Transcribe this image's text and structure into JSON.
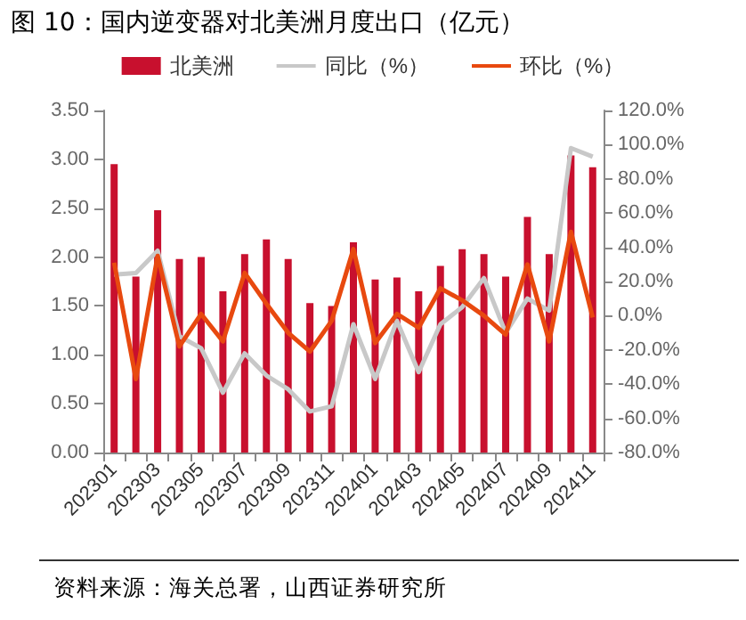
{
  "chart_data": {
    "type": "bar",
    "title": "图 10：国内逆变器对北美洲月度出口（亿元）",
    "annotations": [
      "资料来源：海关总署，山西证券研究所"
    ],
    "categories": [
      "202301",
      null,
      "202303",
      null,
      "202305",
      null,
      "202307",
      null,
      "202309",
      null,
      "202311",
      null,
      "202401",
      null,
      "202403",
      null,
      "202405",
      null,
      "202407",
      null,
      "202409",
      null,
      "202411"
    ],
    "series": [
      {
        "name": "北美洲",
        "color": "#c8102e",
        "values": [
          2.95,
          1.8,
          2.48,
          1.98,
          2.0,
          1.65,
          2.03,
          2.18,
          1.98,
          1.53,
          1.5,
          2.15,
          1.77,
          1.79,
          1.65,
          1.91,
          2.08,
          2.03,
          1.8,
          2.41,
          2.03,
          3.04,
          2.92
        ]
      },
      {
        "name": "同比（%）",
        "type": "line",
        "axis": "y2",
        "color": "#c8c8c8",
        "values": [
          24,
          25,
          38,
          -12,
          -19,
          -45,
          -22,
          -35,
          -43,
          -56,
          -53,
          -5,
          -37,
          -3,
          -33,
          -5,
          5,
          22,
          -10,
          10,
          3,
          98,
          93
        ]
      },
      {
        "name": "环比（%）",
        "type": "line",
        "axis": "y2",
        "color": "#e8490f",
        "values": [
          31,
          -37,
          35,
          -18,
          1,
          -15,
          25,
          7,
          -10,
          -21,
          -3,
          39,
          -16,
          1,
          -7,
          16,
          9,
          0,
          -11,
          30,
          -15,
          49,
          -1
        ]
      }
    ],
    "ylim": [
      0,
      3.5
    ],
    "yticks": [
      {
        "value": 0,
        "label": "0.00"
      },
      {
        "value": 0.5,
        "label": "0.50"
      },
      {
        "value": 1,
        "label": "1.00"
      },
      {
        "value": 1.5,
        "label": "1.50"
      },
      {
        "value": 2,
        "label": "2.00"
      },
      {
        "value": 2.5,
        "label": "2.50"
      },
      {
        "value": 3,
        "label": "3.00"
      },
      {
        "value": 3.5,
        "label": "3.50"
      }
    ],
    "y2lim": [
      -80,
      120
    ],
    "y2ticks": [
      {
        "value": -80,
        "label": "-80.0%"
      },
      {
        "value": -60,
        "label": "-60.0%"
      },
      {
        "value": -40,
        "label": "-40.0%"
      },
      {
        "value": -20,
        "label": "-20.0%"
      },
      {
        "value": 0,
        "label": "0.0%"
      },
      {
        "value": 20,
        "label": "20.0%"
      },
      {
        "value": 40,
        "label": "40.0%"
      },
      {
        "value": 60,
        "label": "60.0%"
      },
      {
        "value": 80,
        "label": "80.0%"
      },
      {
        "value": 100,
        "label": "100.0%"
      },
      {
        "value": 120,
        "label": "120.0%"
      }
    ],
    "legend": "top",
    "grid": false,
    "marker": "none"
  }
}
